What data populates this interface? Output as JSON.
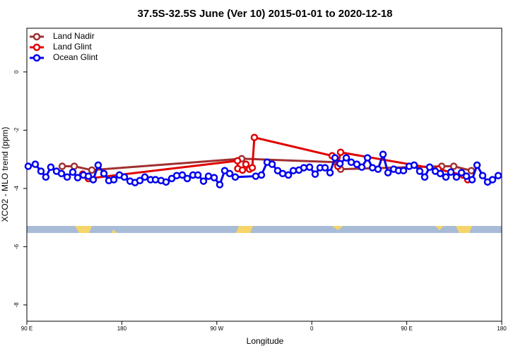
{
  "chart_data": {
    "type": "line",
    "title": "37.5S-32.5S June (Ver 10)   2015-01-01 to 2020-12-18",
    "x_label": "Longitude",
    "y_label": "XCO2 - MLO trend (ppm)",
    "xlim": [
      90,
      540
    ],
    "xticks": [
      {
        "value": 90,
        "label": "90 E"
      },
      {
        "value": 180,
        "label": "180"
      },
      {
        "value": 270,
        "label": "90 W"
      },
      {
        "value": 360,
        "label": "0"
      },
      {
        "value": 450,
        "label": "90 E"
      },
      {
        "value": 540,
        "label": "180"
      }
    ],
    "ylim": [
      -8.56,
      1.5
    ],
    "yticks": [
      0,
      -2,
      -4,
      -6,
      -8
    ],
    "legend": "top-left",
    "series": [
      {
        "name": "Land Nadir",
        "color": "#a03030",
        "x": [
          123.5,
          134.9,
          151.6,
          293.6,
          383.3,
          387.3,
          483.1,
          494.5,
          511.2
        ],
        "values": [
          -3.24,
          -3.24,
          -3.37,
          -2.98,
          -3.1,
          -3.34,
          -3.24,
          -3.24,
          -3.39
        ]
      },
      {
        "name": "Land Glint",
        "color": "#e00000",
        "x": [
          142.9,
          148.3,
          289.6,
          289.9,
          294.3,
          297.6,
          301.0,
          303.6,
          305.6,
          379.3,
          384.7,
          387.3,
          479.8,
          503.2,
          507.8
        ],
        "values": [
          -3.51,
          -3.66,
          -3.05,
          -3.32,
          -3.37,
          -3.17,
          -3.34,
          -3.29,
          -2.25,
          -2.88,
          -3.24,
          -2.76,
          -3.34,
          -3.54,
          -3.7
        ]
      },
      {
        "name": "Ocean Glint",
        "color": "#0000ee",
        "x": [
          91.3,
          98.0,
          103.4,
          108.0,
          112.7,
          118.1,
          122.8,
          128.2,
          133.5,
          138.2,
          143.6,
          148.3,
          152.9,
          157.6,
          163.0,
          167.7,
          172.4,
          177.7,
          182.4,
          187.8,
          192.5,
          197.1,
          201.8,
          207.2,
          211.9,
          217.2,
          221.9,
          227.3,
          232.0,
          237.3,
          242.0,
          247.4,
          252.1,
          257.4,
          262.1,
          267.5,
          272.8,
          277.5,
          282.2,
          287.5,
          306.9,
          312.3,
          317.7,
          322.4,
          327.7,
          332.4,
          337.8,
          342.5,
          347.8,
          352.5,
          357.9,
          363.2,
          367.9,
          372.6,
          377.3,
          382.0,
          386.7,
          392.7,
          397.4,
          402.7,
          407.4,
          412.8,
          417.5,
          422.8,
          427.5,
          432.2,
          437.6,
          442.2,
          446.9,
          452.3,
          457.0,
          462.3,
          467.0,
          471.7,
          477.1,
          481.8,
          487.1,
          491.8,
          497.1,
          501.9,
          506.5,
          511.9,
          516.6,
          521.9,
          526.6,
          531.3,
          536.7
        ],
        "values": [
          -3.24,
          -3.17,
          -3.41,
          -3.61,
          -3.27,
          -3.41,
          -3.49,
          -3.61,
          -3.44,
          -3.63,
          -3.54,
          -3.58,
          -3.7,
          -3.2,
          -3.49,
          -3.73,
          -3.7,
          -3.54,
          -3.61,
          -3.75,
          -3.8,
          -3.73,
          -3.61,
          -3.7,
          -3.7,
          -3.73,
          -3.78,
          -3.66,
          -3.56,
          -3.54,
          -3.66,
          -3.54,
          -3.54,
          -3.75,
          -3.58,
          -3.63,
          -3.87,
          -3.39,
          -3.49,
          -3.61,
          -3.58,
          -3.54,
          -3.1,
          -3.17,
          -3.39,
          -3.49,
          -3.54,
          -3.39,
          -3.37,
          -3.29,
          -3.27,
          -3.51,
          -3.29,
          -3.29,
          -3.46,
          -2.95,
          -3.15,
          -2.95,
          -3.1,
          -3.17,
          -3.27,
          -2.95,
          -3.29,
          -3.34,
          -2.83,
          -3.46,
          -3.34,
          -3.39,
          -3.39,
          -3.24,
          -3.2,
          -3.41,
          -3.61,
          -3.27,
          -3.41,
          -3.49,
          -3.61,
          -3.44,
          -3.61,
          -3.46,
          -3.58,
          -3.7,
          -3.2,
          -3.56,
          -3.78,
          -3.7,
          -3.56
        ]
      }
    ]
  }
}
